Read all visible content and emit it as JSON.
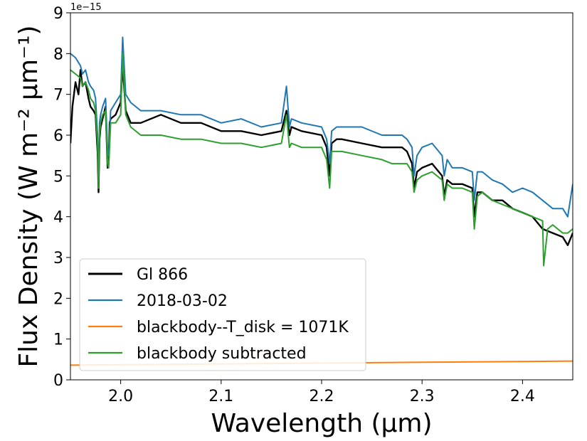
{
  "chart_data": {
    "type": "line",
    "xlabel": "Wavelength (μm)",
    "ylabel": "Flux Density (W m⁻² μm⁻¹)",
    "y_offset_label": "1e−15",
    "xlim": [
      1.95,
      2.45
    ],
    "ylim": [
      0,
      9
    ],
    "x_ticks": [
      2.0,
      2.1,
      2.2,
      2.3,
      2.4
    ],
    "x_tick_labels": [
      "2.0",
      "2.1",
      "2.2",
      "2.3",
      "2.4"
    ],
    "y_ticks": [
      0,
      1,
      2,
      3,
      4,
      5,
      6,
      7,
      8,
      9
    ],
    "y_tick_labels": [
      "0",
      "1",
      "2",
      "3",
      "4",
      "5",
      "6",
      "7",
      "8",
      "9"
    ],
    "grid": false,
    "legend_position": "lower-left",
    "series": [
      {
        "name": "Gl 866",
        "color": "#000000",
        "x": [
          1.95,
          1.952,
          1.955,
          1.958,
          1.96,
          1.962,
          1.965,
          1.968,
          1.97,
          1.973,
          1.975,
          1.977,
          1.978,
          1.979,
          1.98,
          1.982,
          1.985,
          1.987,
          1.988,
          1.989,
          1.99,
          1.995,
          2.0,
          2.002,
          2.005,
          2.01,
          2.02,
          2.04,
          2.06,
          2.08,
          2.1,
          2.12,
          2.14,
          2.16,
          2.165,
          2.168,
          2.17,
          2.18,
          2.2,
          2.205,
          2.208,
          2.21,
          2.215,
          2.22,
          2.24,
          2.26,
          2.27,
          2.28,
          2.285,
          2.29,
          2.292,
          2.295,
          2.3,
          2.31,
          2.32,
          2.322,
          2.325,
          2.33,
          2.34,
          2.35,
          2.352,
          2.355,
          2.36,
          2.37,
          2.38,
          2.39,
          2.4,
          2.41,
          2.42,
          2.43,
          2.44,
          2.445,
          2.45
        ],
        "y": [
          5.8,
          6.7,
          7.3,
          7.0,
          7.6,
          7.2,
          7.3,
          6.9,
          6.7,
          6.6,
          6.5,
          5.6,
          4.6,
          5.9,
          6.2,
          6.4,
          6.7,
          5.2,
          5.3,
          6.3,
          6.4,
          6.5,
          6.8,
          7.7,
          6.6,
          6.3,
          6.3,
          6.5,
          6.3,
          6.3,
          6.1,
          6.1,
          6.0,
          6.1,
          6.6,
          6.0,
          6.2,
          6.1,
          6.0,
          5.7,
          5.0,
          5.8,
          5.9,
          5.9,
          5.8,
          5.7,
          5.7,
          5.7,
          5.6,
          5.3,
          4.7,
          5.1,
          5.2,
          5.3,
          5.0,
          4.5,
          4.9,
          4.8,
          4.8,
          4.7,
          4.0,
          4.6,
          4.6,
          4.4,
          4.4,
          4.2,
          4.1,
          4.0,
          3.7,
          3.6,
          3.5,
          3.3,
          3.6
        ]
      },
      {
        "name": "2018-03-02",
        "color": "#1f77b4",
        "x": [
          1.95,
          1.955,
          1.96,
          1.962,
          1.965,
          1.968,
          1.97,
          1.973,
          1.975,
          1.977,
          1.978,
          1.979,
          1.98,
          1.982,
          1.985,
          1.987,
          1.988,
          1.99,
          1.995,
          2.0,
          2.002,
          2.005,
          2.01,
          2.02,
          2.04,
          2.06,
          2.08,
          2.1,
          2.12,
          2.14,
          2.16,
          2.165,
          2.168,
          2.17,
          2.18,
          2.2,
          2.205,
          2.208,
          2.21,
          2.215,
          2.22,
          2.24,
          2.26,
          2.27,
          2.28,
          2.285,
          2.29,
          2.292,
          2.295,
          2.3,
          2.31,
          2.32,
          2.322,
          2.325,
          2.33,
          2.34,
          2.35,
          2.352,
          2.355,
          2.36,
          2.37,
          2.38,
          2.39,
          2.4,
          2.41,
          2.42,
          2.43,
          2.44,
          2.445,
          2.45
        ],
        "y": [
          8.0,
          7.9,
          7.7,
          7.5,
          7.6,
          7.3,
          7.2,
          7.1,
          6.9,
          6.0,
          4.8,
          6.3,
          6.5,
          6.7,
          6.9,
          5.6,
          5.5,
          6.6,
          6.8,
          7.0,
          8.4,
          7.0,
          6.8,
          6.6,
          6.6,
          6.5,
          6.5,
          6.3,
          6.4,
          6.2,
          6.3,
          7.2,
          6.2,
          6.4,
          6.3,
          6.2,
          5.9,
          5.3,
          6.1,
          6.2,
          6.2,
          6.2,
          6.0,
          6.0,
          6.0,
          5.9,
          5.7,
          5.0,
          5.5,
          5.7,
          5.8,
          5.5,
          5.0,
          5.4,
          5.2,
          5.2,
          5.1,
          4.4,
          5.1,
          5.1,
          4.9,
          4.8,
          4.6,
          4.7,
          4.6,
          4.4,
          4.2,
          4.2,
          4.0,
          4.8
        ]
      },
      {
        "name": "blackbody--T_disk = 1071K",
        "color": "#ff7f0e",
        "x": [
          1.95,
          2.0,
          2.05,
          2.1,
          2.15,
          2.2,
          2.25,
          2.3,
          2.35,
          2.4,
          2.45
        ],
        "y": [
          0.36,
          0.37,
          0.38,
          0.39,
          0.4,
          0.41,
          0.42,
          0.43,
          0.44,
          0.45,
          0.46
        ]
      },
      {
        "name": "blackbody subtracted",
        "color": "#2ca02c",
        "x": [
          1.95,
          1.955,
          1.96,
          1.962,
          1.965,
          1.968,
          1.97,
          1.973,
          1.975,
          1.977,
          1.978,
          1.979,
          1.98,
          1.982,
          1.985,
          1.987,
          1.988,
          1.99,
          1.995,
          2.0,
          2.002,
          2.005,
          2.01,
          2.02,
          2.04,
          2.06,
          2.08,
          2.1,
          2.12,
          2.14,
          2.16,
          2.165,
          2.168,
          2.17,
          2.18,
          2.2,
          2.205,
          2.208,
          2.21,
          2.215,
          2.22,
          2.24,
          2.26,
          2.27,
          2.28,
          2.285,
          2.29,
          2.292,
          2.295,
          2.3,
          2.31,
          2.32,
          2.322,
          2.325,
          2.33,
          2.34,
          2.35,
          2.352,
          2.355,
          2.36,
          2.37,
          2.38,
          2.39,
          2.4,
          2.41,
          2.42,
          2.421,
          2.425,
          2.43,
          2.44,
          2.445,
          2.45
        ],
        "y": [
          7.6,
          7.5,
          7.4,
          7.2,
          7.3,
          7.1,
          6.9,
          6.8,
          6.6,
          5.8,
          4.7,
          6.0,
          6.3,
          6.5,
          6.6,
          5.3,
          5.2,
          6.3,
          6.3,
          6.5,
          8.0,
          6.5,
          6.2,
          6.0,
          6.0,
          5.9,
          5.9,
          5.8,
          5.8,
          5.7,
          5.8,
          6.5,
          5.7,
          5.8,
          5.7,
          5.7,
          5.4,
          4.7,
          5.6,
          5.6,
          5.6,
          5.5,
          5.4,
          5.3,
          5.3,
          5.3,
          5.1,
          4.6,
          4.9,
          5.0,
          5.1,
          4.9,
          4.4,
          4.8,
          4.7,
          4.7,
          4.6,
          3.7,
          4.5,
          4.6,
          4.4,
          4.3,
          4.2,
          4.1,
          4.0,
          3.9,
          2.8,
          3.7,
          3.8,
          3.6,
          3.6,
          3.7
        ]
      }
    ]
  }
}
